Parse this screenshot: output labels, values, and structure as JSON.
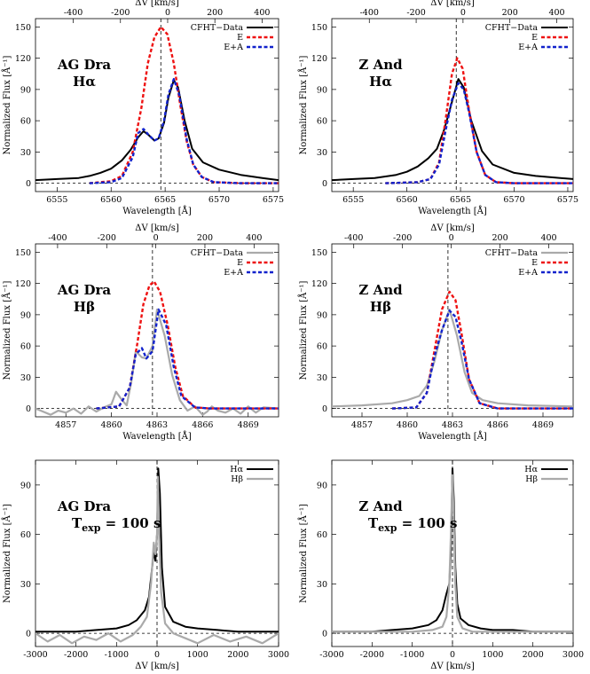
{
  "figure": {
    "background": "#ffffff"
  },
  "colors": {
    "data": "#000000",
    "data_hbeta": "#aaaaaa",
    "E": "#ee1111",
    "EA": "#1122cc",
    "guide": "#000000"
  },
  "chart_data": [
    {
      "id": "agdra-ha",
      "type": "line",
      "title_lines": [
        "AG Dra",
        "Hα"
      ],
      "xlabel": "Wavelength [Å]",
      "ylabel": "Normalized Flux [Å⁻¹]",
      "x2label": "ΔV [km/s]",
      "xlim": [
        6553,
        6575.5
      ],
      "ylim": [
        -8,
        158
      ],
      "xticks": [
        6555,
        6560,
        6565,
        6570,
        6575
      ],
      "yticks": [
        0,
        30,
        60,
        90,
        120,
        150
      ],
      "x2lim": [
        -560,
        470
      ],
      "x2ticks": [
        -400,
        -200,
        0,
        200,
        400
      ],
      "vline_x": 6564.6,
      "legend": {
        "placement": "top-right",
        "entries": [
          "CFHT−Data",
          "E",
          "E+A"
        ]
      },
      "series": [
        {
          "name": "CFHT−Data",
          "style": "data",
          "x": [
            6553,
            6555,
            6557,
            6558,
            6559,
            6560,
            6561,
            6561.8,
            6562.5,
            6563,
            6563.5,
            6564,
            6564.4,
            6564.9,
            6565.3,
            6565.8,
            6566.2,
            6566.8,
            6567.5,
            6568.5,
            6570,
            6572,
            6574,
            6575.5
          ],
          "y": [
            3,
            4,
            5,
            7,
            10,
            14,
            22,
            32,
            44,
            50,
            46,
            41,
            43,
            58,
            82,
            99,
            92,
            60,
            33,
            20,
            13,
            8,
            5,
            3
          ]
        },
        {
          "name": "E",
          "style": "E",
          "x": [
            6558,
            6560,
            6561,
            6562,
            6562.8,
            6563.4,
            6564,
            6564.6,
            6565.2,
            6565.8,
            6566.4,
            6567,
            6567.6,
            6568.4,
            6569.5,
            6572,
            6575.5
          ],
          "y": [
            0,
            2,
            7,
            30,
            72,
            115,
            140,
            150,
            143,
            115,
            75,
            40,
            18,
            6,
            1,
            0,
            0
          ]
        },
        {
          "name": "E+A",
          "style": "EA",
          "x": [
            6558,
            6560,
            6561,
            6562,
            6562.5,
            6563,
            6563.5,
            6564,
            6564.4,
            6564.9,
            6565.3,
            6565.8,
            6566.3,
            6567,
            6567.6,
            6568.4,
            6569.5,
            6572,
            6575.5
          ],
          "y": [
            0,
            1,
            5,
            25,
            48,
            52,
            46,
            41,
            43,
            60,
            85,
            100,
            85,
            42,
            18,
            6,
            1,
            0,
            0
          ]
        }
      ]
    },
    {
      "id": "zand-ha",
      "type": "line",
      "title_lines": [
        "Z And",
        "Hα"
      ],
      "xlabel": "Wavelength [Å]",
      "ylabel": "Normalized Flux [Å⁻¹]",
      "x2label": "ΔV [km/s]",
      "xlim": [
        6553,
        6575.5
      ],
      "ylim": [
        -8,
        158
      ],
      "xticks": [
        6555,
        6560,
        6565,
        6570,
        6575
      ],
      "yticks": [
        0,
        30,
        60,
        90,
        120,
        150
      ],
      "x2lim": [
        -560,
        470
      ],
      "x2ticks": [
        -400,
        -200,
        0,
        200,
        400
      ],
      "vline_x": 6564.6,
      "legend": {
        "placement": "top-right",
        "entries": [
          "CFHT−Data",
          "E",
          "E+A"
        ]
      },
      "series": [
        {
          "name": "CFHT−Data",
          "style": "data",
          "x": [
            6553,
            6555,
            6557,
            6559,
            6560,
            6561,
            6562,
            6562.8,
            6563.5,
            6564.2,
            6564.8,
            6565.3,
            6566,
            6567,
            6568,
            6570,
            6572,
            6575.5
          ],
          "y": [
            3,
            4,
            5,
            8,
            11,
            16,
            24,
            33,
            52,
            78,
            100,
            92,
            60,
            31,
            18,
            10,
            7,
            4
          ]
        },
        {
          "name": "E",
          "style": "E",
          "x": [
            6558,
            6561,
            6562.2,
            6563,
            6563.6,
            6564.2,
            6564.7,
            6565.2,
            6565.8,
            6566.5,
            6567.3,
            6568.3,
            6570,
            6575.5
          ],
          "y": [
            0,
            1,
            4,
            20,
            60,
            105,
            120,
            110,
            70,
            30,
            8,
            1,
            0,
            0
          ]
        },
        {
          "name": "E+A",
          "style": "EA",
          "x": [
            6558,
            6561,
            6562.2,
            6563,
            6563.6,
            6564.2,
            6564.8,
            6565.3,
            6565.8,
            6566.5,
            6567.3,
            6568.3,
            6570,
            6575.5
          ],
          "y": [
            0,
            1,
            4,
            18,
            50,
            80,
            96,
            90,
            68,
            30,
            8,
            1,
            0,
            0
          ]
        }
      ]
    },
    {
      "id": "agdra-hb",
      "type": "line",
      "title_lines": [
        "AG Dra",
        "Hβ"
      ],
      "xlabel": "Wavelength [Å]",
      "ylabel": "Normalized Flux [Å⁻¹]",
      "x2label": "ΔV [km/s]",
      "xlim": [
        4855,
        4871
      ],
      "ylim": [
        -8,
        158
      ],
      "xticks": [
        4857,
        4860,
        4863,
        4866,
        4869
      ],
      "yticks": [
        0,
        30,
        60,
        90,
        120,
        150
      ],
      "x2lim": [
        -490,
        500
      ],
      "x2ticks": [
        -400,
        -200,
        0,
        200,
        400
      ],
      "vline_x": 4862.7,
      "legend": {
        "placement": "top-right",
        "entries": [
          "CFHT−Data",
          "E",
          "E+A"
        ]
      },
      "series": [
        {
          "name": "CFHT−Data",
          "style": "datab",
          "x": [
            4855,
            4856,
            4856.5,
            4857,
            4857.5,
            4858,
            4858.5,
            4859,
            4859.5,
            4860,
            4860.3,
            4860.7,
            4861,
            4861.3,
            4861.6,
            4862,
            4862.3,
            4862.7,
            4863,
            4863.5,
            4864,
            4864.5,
            4865,
            4865.5,
            4866,
            4866.3,
            4866.6,
            4867,
            4867.5,
            4868,
            4868.5,
            4869,
            4869.5,
            4870,
            4871
          ],
          "y": [
            0,
            -6,
            -2,
            -4,
            0,
            -5,
            2,
            -3,
            1,
            4,
            16,
            8,
            3,
            25,
            55,
            49,
            48,
            60,
            95,
            70,
            32,
            8,
            -2,
            2,
            -6,
            -3,
            2,
            -2,
            -4,
            0,
            -5,
            2,
            -4,
            1,
            0
          ]
        },
        {
          "name": "E",
          "style": "E",
          "x": [
            4859,
            4860.5,
            4861.2,
            4861.7,
            4862.1,
            4862.5,
            4862.8,
            4863.2,
            4863.7,
            4864.2,
            4864.7,
            4865.5,
            4866.5,
            4871
          ],
          "y": [
            0,
            2,
            20,
            62,
            100,
            118,
            122,
            112,
            80,
            40,
            12,
            1,
            0,
            0
          ]
        },
        {
          "name": "E+A",
          "style": "EA",
          "x": [
            4859,
            4860.5,
            4861.2,
            4861.6,
            4862,
            4862.3,
            4862.7,
            4863.1,
            4863.6,
            4864.1,
            4864.6,
            4865.5,
            4866.5,
            4871
          ],
          "y": [
            0,
            2,
            20,
            52,
            58,
            48,
            55,
            95,
            80,
            40,
            12,
            1,
            0,
            0
          ]
        }
      ]
    },
    {
      "id": "zand-hb",
      "type": "line",
      "title_lines": [
        "Z And",
        "Hβ"
      ],
      "xlabel": "Wavelength [Å]",
      "ylabel": "Normalized Flux [Å⁻¹]",
      "x2label": "ΔV [km/s]",
      "xlim": [
        4855,
        4871
      ],
      "ylim": [
        -8,
        158
      ],
      "xticks": [
        4857,
        4860,
        4863,
        4866,
        4869
      ],
      "yticks": [
        0,
        30,
        60,
        90,
        120,
        150
      ],
      "x2lim": [
        -490,
        500
      ],
      "x2ticks": [
        -400,
        -200,
        0,
        200,
        400
      ],
      "vline_x": 4862.7,
      "legend": {
        "placement": "top-right",
        "entries": [
          "CFHT−Data",
          "E",
          "E+A"
        ]
      },
      "series": [
        {
          "name": "CFHT−Data",
          "style": "datab",
          "x": [
            4855,
            4857,
            4859,
            4860,
            4860.8,
            4861.3,
            4861.8,
            4862.3,
            4862.8,
            4863.3,
            4863.8,
            4864.3,
            4865,
            4866,
            4868,
            4871
          ],
          "y": [
            2,
            3,
            5,
            8,
            12,
            22,
            45,
            75,
            95,
            70,
            35,
            15,
            8,
            5,
            3,
            2
          ]
        },
        {
          "name": "E",
          "style": "E",
          "x": [
            4859,
            4860.6,
            4861.3,
            4861.8,
            4862.3,
            4862.8,
            4863.2,
            4863.6,
            4864.1,
            4864.8,
            4866,
            4871
          ],
          "y": [
            0,
            1,
            15,
            55,
            95,
            112,
            104,
            72,
            28,
            5,
            0,
            0
          ]
        },
        {
          "name": "E+A",
          "style": "EA",
          "x": [
            4859,
            4860.6,
            4861.3,
            4861.8,
            4862.3,
            4862.8,
            4863.2,
            4863.6,
            4864.1,
            4864.8,
            4866,
            4871
          ],
          "y": [
            0,
            1,
            15,
            50,
            75,
            94,
            88,
            64,
            28,
            5,
            0,
            0
          ]
        }
      ]
    },
    {
      "id": "agdra-vel",
      "type": "line",
      "title_lines": [
        "AG Dra",
        "T_exp = 100 s"
      ],
      "xlabel": "ΔV [km/s]",
      "ylabel": "Normalized Flux [Å⁻¹]",
      "xlim": [
        -3000,
        3000
      ],
      "ylim": [
        -8,
        105
      ],
      "xticks": [
        -3000,
        -2000,
        -1000,
        0,
        1000,
        2000,
        3000
      ],
      "yticks": [
        0,
        30,
        60,
        90
      ],
      "vline_x": 0,
      "legend": {
        "placement": "top-right",
        "entries": [
          "Hα",
          "Hβ"
        ]
      },
      "series": [
        {
          "name": "Hα",
          "style": "data",
          "x": [
            -3000,
            -2000,
            -1500,
            -1000,
            -700,
            -500,
            -300,
            -200,
            -120,
            -80,
            -40,
            0,
            30,
            70,
            120,
            200,
            400,
            700,
            1000,
            1500,
            2000,
            3000
          ],
          "y": [
            1,
            1,
            2,
            3,
            5,
            8,
            14,
            22,
            40,
            50,
            44,
            60,
            100,
            85,
            40,
            16,
            7,
            4,
            3,
            2,
            1,
            1
          ]
        },
        {
          "name": "Hβ",
          "style": "datab",
          "x": [
            -3000,
            -2700,
            -2400,
            -2100,
            -1800,
            -1500,
            -1200,
            -900,
            -600,
            -400,
            -250,
            -150,
            -80,
            -40,
            0,
            20,
            50,
            100,
            200,
            400,
            700,
            1000,
            1400,
            1800,
            2200,
            2600,
            3000
          ],
          "y": [
            0,
            -5,
            -1,
            -6,
            -2,
            -4,
            0,
            -5,
            -1,
            4,
            10,
            30,
            55,
            48,
            60,
            95,
            60,
            25,
            6,
            0,
            -3,
            -6,
            -1,
            -5,
            -2,
            -6,
            0
          ]
        }
      ]
    },
    {
      "id": "zand-vel",
      "type": "line",
      "title_lines": [
        "Z And",
        "T_exp = 100 s"
      ],
      "xlabel": "ΔV [km/s]",
      "ylabel": "Normalized Flux [Å⁻¹]",
      "xlim": [
        -3000,
        3000
      ],
      "ylim": [
        -8,
        105
      ],
      "xticks": [
        -3000,
        -2000,
        -1000,
        0,
        1000,
        2000,
        3000
      ],
      "yticks": [
        0,
        30,
        60,
        90
      ],
      "vline_x": 0,
      "legend": {
        "placement": "top-right",
        "entries": [
          "Hα",
          "Hβ"
        ]
      },
      "series": [
        {
          "name": "Hα",
          "style": "data",
          "x": [
            -3000,
            -2000,
            -1500,
            -1000,
            -600,
            -400,
            -250,
            -150,
            -80,
            -40,
            0,
            30,
            70,
            120,
            200,
            400,
            700,
            1000,
            1500,
            2000,
            3000
          ],
          "y": [
            1,
            1,
            2,
            3,
            5,
            8,
            14,
            24,
            30,
            50,
            100,
            82,
            40,
            18,
            9,
            5,
            3,
            2,
            2,
            1,
            1
          ]
        },
        {
          "name": "Hβ",
          "style": "datab",
          "x": [
            -3000,
            -2000,
            -1000,
            -500,
            -250,
            -150,
            -80,
            -40,
            0,
            30,
            70,
            120,
            250,
            500,
            1000,
            2000,
            3000
          ],
          "y": [
            1,
            1,
            1,
            2,
            4,
            10,
            30,
            60,
            96,
            70,
            30,
            10,
            3,
            1,
            1,
            1,
            1
          ]
        }
      ]
    }
  ]
}
